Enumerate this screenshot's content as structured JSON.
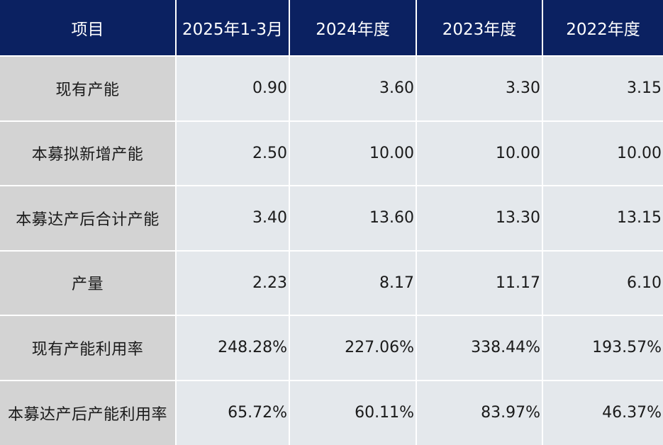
{
  "table": {
    "headers": [
      "项目",
      "2025年1-3月",
      "2024年度",
      "2023年度",
      "2022年度"
    ],
    "rows": [
      {
        "label": "现有产能",
        "values": [
          "0.90",
          "3.60",
          "3.30",
          "3.15"
        ]
      },
      {
        "label": "本募拟新增产能",
        "values": [
          "2.50",
          "10.00",
          "10.00",
          "10.00"
        ]
      },
      {
        "label": "本募达产后合计产能",
        "values": [
          "3.40",
          "13.60",
          "13.30",
          "13.15"
        ]
      },
      {
        "label": "产量",
        "values": [
          "2.23",
          "8.17",
          "11.17",
          "6.10"
        ]
      },
      {
        "label": "现有产能利用率",
        "values": [
          "248.28%",
          "227.06%",
          "338.44%",
          "193.57%"
        ]
      },
      {
        "label": "本募达产后产能利用率",
        "values": [
          "65.72%",
          "60.11%",
          "83.97%",
          "46.37%"
        ]
      }
    ]
  },
  "colors": {
    "header_bg": "#0b2161",
    "header_text": "#ffffff",
    "label_bg": "#d3d3d3",
    "cell_bg": "#e4e8ec",
    "gridline": "#ffffff"
  }
}
